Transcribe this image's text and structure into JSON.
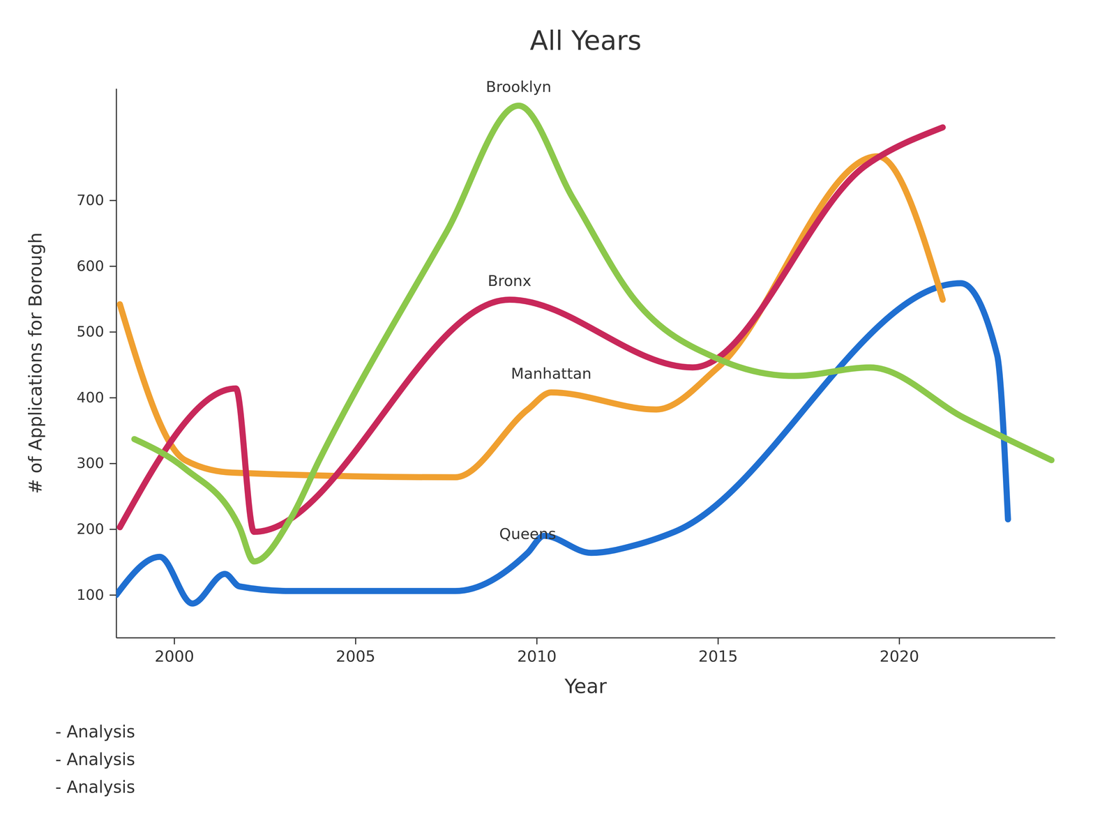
{
  "chart_data": {
    "type": "line",
    "title": "All Years",
    "x_label": "Year",
    "y_label": "# of Applications for Borough",
    "xlim": [
      1998.4,
      2024.3
    ],
    "xticks": [
      2000,
      2005,
      2010,
      2015,
      2020
    ],
    "ylim": [
      35,
      870
    ],
    "yticks": [
      100,
      200,
      300,
      400,
      500,
      600,
      700
    ],
    "grid": false,
    "legend": "none",
    "line_style": "solid",
    "annotations": [
      "- Analysis",
      "- Analysis",
      "- Analysis"
    ],
    "series": [
      {
        "name": "Queens",
        "color": "#1f6fd1",
        "x": [
          1998.4,
          1999.6,
          2000.5,
          2001.4,
          2001.8,
          2003.2,
          2007.75,
          2009.75,
          2010.2,
          2011.5,
          2012.8,
          2013.8,
          2021.7,
          2022.7,
          2023.0
        ],
        "values": [
          100,
          158,
          87,
          132,
          113,
          106,
          106,
          164,
          190,
          164,
          177,
          196,
          574,
          465,
          215
        ]
      },
      {
        "name": "Manhattan",
        "color": "#f0a030",
        "x": [
          1998.5,
          2000.3,
          2001.6,
          2007.75,
          2009.75,
          2010.4,
          2013.3,
          2015.0,
          2019.4,
          2021.2
        ],
        "values": [
          542,
          305,
          286,
          279,
          382,
          408,
          382,
          446,
          767,
          549
        ]
      },
      {
        "name": "Bronx",
        "color": "#c8285a",
        "x": [
          1998.5,
          2001.7,
          2002.2,
          2009.25,
          2014.3,
          2019.1,
          2021.2
        ],
        "values": [
          203,
          414,
          196,
          549,
          446,
          754,
          811
        ]
      },
      {
        "name": "Brooklyn",
        "color": "#8cc84b",
        "x": [
          1998.9,
          2000.3,
          2001.8,
          2002.2,
          2003.2,
          2004.0,
          2007.5,
          2009.5,
          2011.0,
          2012.7,
          2015.0,
          2017.1,
          2019.2,
          2021.8,
          2024.2
        ],
        "values": [
          337,
          292,
          203,
          151,
          215,
          305,
          651,
          844,
          703,
          549,
          459,
          433,
          446,
          369,
          305
        ]
      }
    ]
  }
}
